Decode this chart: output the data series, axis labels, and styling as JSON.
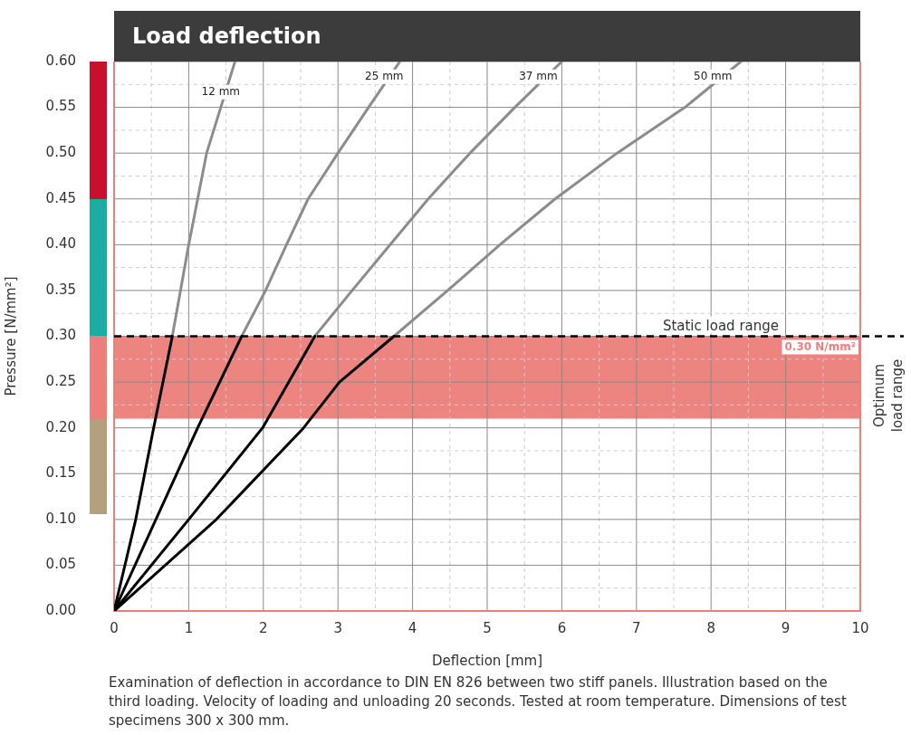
{
  "chart_data": {
    "type": "line",
    "title": "Load deflection",
    "xlabel": "Deflection [mm]",
    "ylabel": "Pressure [N/mm²]",
    "xlim": [
      0,
      10
    ],
    "ylim": [
      0,
      0.6
    ],
    "xticks": [
      0,
      {
        "value": 0.5,
        "label": null
      },
      1,
      {
        "value": 1.5,
        "label": null
      },
      2,
      {
        "value": 2.5,
        "label": null
      },
      3,
      {
        "value": 3.5,
        "label": null
      },
      4,
      {
        "value": 4.5,
        "label": null
      },
      5,
      {
        "value": 5.5,
        "label": null
      },
      6,
      {
        "value": 6.5,
        "label": null
      },
      7,
      {
        "value": 7.5,
        "label": null
      },
      8,
      {
        "value": 8.5,
        "label": null
      },
      9,
      {
        "value": 9.5,
        "label": null
      },
      10
    ],
    "yticks": [
      {
        "value": 0,
        "label": "0.00"
      },
      {
        "value": 0.025,
        "label": null
      },
      {
        "value": 0.05,
        "label": "0.05"
      },
      {
        "value": 0.075,
        "label": null
      },
      {
        "value": 0.1,
        "label": "0.10"
      },
      {
        "value": 0.125,
        "label": null
      },
      {
        "value": 0.15,
        "label": "0.15"
      },
      {
        "value": 0.175,
        "label": null
      },
      {
        "value": 0.2,
        "label": "0.20"
      },
      {
        "value": 0.225,
        "label": null
      },
      {
        "value": 0.25,
        "label": "0.25"
      },
      {
        "value": 0.275,
        "label": null
      },
      {
        "value": 0.3,
        "label": "0.30"
      },
      {
        "value": 0.325,
        "label": null
      },
      {
        "value": 0.35,
        "label": "0.35"
      },
      {
        "value": 0.375,
        "label": null
      },
      {
        "value": 0.4,
        "label": "0.40"
      },
      {
        "value": 0.425,
        "label": null
      },
      {
        "value": 0.45,
        "label": "0.45"
      },
      {
        "value": 0.475,
        "label": null
      },
      {
        "value": 0.5,
        "label": "0.50"
      },
      {
        "value": 0.525,
        "label": null
      },
      {
        "value": 0.55,
        "label": "0.55"
      },
      {
        "value": 0.575,
        "label": null
      },
      {
        "value": 0.6,
        "label": "0.60"
      }
    ],
    "grid": true,
    "marker": "none",
    "line_style": "solid",
    "legend": false,
    "series": [
      {
        "x": [
          0,
          0.29,
          0.53,
          0.78
        ],
        "values": [
          0,
          0.1,
          0.2,
          0.3
        ],
        "color": "#000000"
      },
      {
        "name": "12 mm",
        "x": [
          0.78,
          1.0,
          1.24,
          1.62
        ],
        "values": [
          0.3,
          0.4,
          0.5,
          0.6
        ],
        "color": "#8c8c8c"
      },
      {
        "x": [
          0,
          0.56,
          1.12,
          1.71
        ],
        "values": [
          0,
          0.1,
          0.2,
          0.3
        ],
        "color": "#000000"
      },
      {
        "name": "25 mm",
        "x": [
          1.71,
          2.03,
          2.31,
          2.6,
          3.0,
          3.41,
          3.83
        ],
        "values": [
          0.3,
          0.35,
          0.4,
          0.45,
          0.5,
          0.55,
          0.6
        ],
        "color": "#8c8c8c"
      },
      {
        "x": [
          0,
          1.0,
          1.99,
          2.69
        ],
        "values": [
          0,
          0.1,
          0.2,
          0.3
        ],
        "color": "#000000"
      },
      {
        "name": "37 mm",
        "x": [
          2.69,
          3.19,
          3.7,
          4.21,
          4.77,
          5.37,
          6.0
        ],
        "values": [
          0.3,
          0.35,
          0.4,
          0.45,
          0.5,
          0.55,
          0.6
        ],
        "color": "#8c8c8c"
      },
      {
        "x": [
          0,
          1.37,
          2.54,
          3.02,
          3.75
        ],
        "values": [
          0,
          0.1,
          0.2,
          0.25,
          0.3
        ],
        "color": "#000000"
      },
      {
        "name": "50 mm",
        "x": [
          3.75,
          4.47,
          5.17,
          5.91,
          6.74,
          7.65,
          8.4
        ],
        "values": [
          0.3,
          0.35,
          0.4,
          0.45,
          0.5,
          0.55,
          0.6
        ],
        "color": "#8c8c8c"
      }
    ],
    "ref_lines": [
      {
        "axis": "y",
        "value": 0.3,
        "label": "Static load range",
        "color": "#000000",
        "line_style": "dashed"
      }
    ],
    "bands": [
      {
        "axis": "y",
        "from": 0.21,
        "to": 0.3,
        "label": "Optimum load range",
        "color": "#ec8480"
      }
    ],
    "annotations": [
      "Examination of deflection in accordance to DIN EN 826 between two stiff panels. Illustration based on the third loading. Velocity of loading and unloading 20 seconds. Tested at room temperature. Dimensions of test specimens 300 x 300 mm.",
      "0.30 N/mm²"
    ]
  }
}
